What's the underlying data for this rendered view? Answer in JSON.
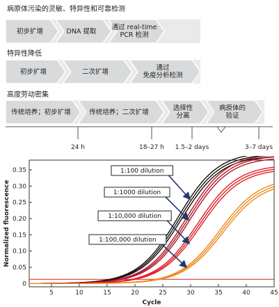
{
  "workflow": {
    "sections": [
      {
        "title": "病原体污染的灵敏、特异性和可靠检测",
        "steps": [
          "初步扩增",
          "DNA 提取",
          "通过 real-time\nPCR 检测"
        ]
      },
      {
        "title": "特异性降低",
        "steps": [
          "初步扩增",
          "二次扩增",
          "通过\n免疫分析检测"
        ]
      },
      {
        "title": "高度劳动密集",
        "steps": [
          "传统培养；初步扩增",
          "传统培养；二次扩增",
          "选择性\n分离",
          "病原体的\n验证"
        ]
      }
    ],
    "timeline": [
      "24 h",
      "18–27 h",
      "1.5–2 days",
      "3–7 days"
    ]
  },
  "chart_data": {
    "type": "line",
    "xlabel": "Cycle",
    "ylabel": "Normalized fluorescence",
    "xlim": [
      1,
      45
    ],
    "ylim": [
      -0.01,
      0.38
    ],
    "xticks": [
      5,
      10,
      15,
      20,
      25,
      30,
      35,
      40,
      45
    ],
    "yticks": [
      0,
      0.05,
      0.1,
      0.15,
      0.2,
      0.25,
      0.3,
      0.35
    ],
    "threshold": 0.013,
    "grid": false,
    "series": [
      {
        "name": "1:100 dilution",
        "color": "#1a0d0d",
        "plateau": 0.4,
        "midpoint": 28.0,
        "slope": 3.6,
        "replicates": 3
      },
      {
        "name": "1:1000 dilution",
        "color": "#b0182a",
        "plateau": 0.395,
        "midpoint": 29.5,
        "slope": 3.6,
        "replicates": 3
      },
      {
        "name": "1:10,000 dilution",
        "color": "#e01f25",
        "plateau": 0.36,
        "midpoint": 31.5,
        "slope": 3.6,
        "replicates": 3
      },
      {
        "name": "1:100,000 dilution",
        "color": "#ef8a1c",
        "plateau": 0.32,
        "midpoint": 35.5,
        "slope": 3.6,
        "replicates": 3
      }
    ]
  }
}
